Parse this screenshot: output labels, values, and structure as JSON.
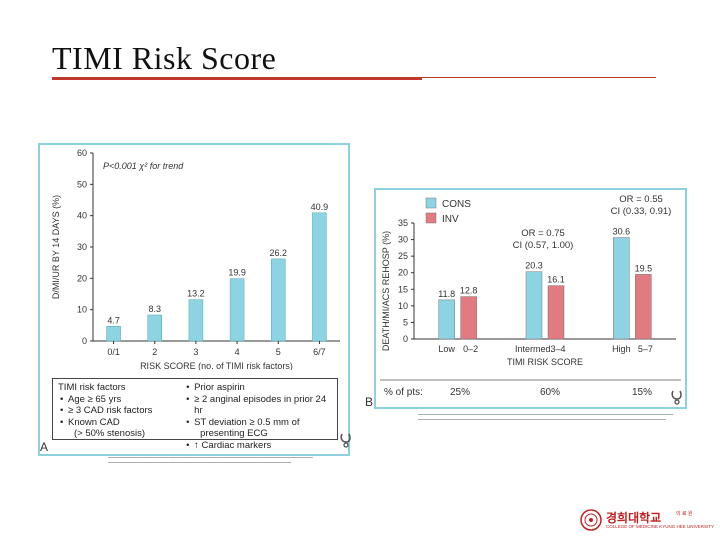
{
  "slide": {
    "title": "TIMI Risk Score"
  },
  "colors": {
    "accent": "#c0392b",
    "panel_border": "#8fd0e0",
    "cons": "#8ed3e1",
    "inv": "#e07b82"
  },
  "chart_data": [
    {
      "type": "bar",
      "panel": "A",
      "annotation": "P<0.001 χ² for trend",
      "ylabel": "D/MI/UR BY 14 DAYS (%)",
      "xlabel": "RISK SCORE (no. of TIMI risk factors)",
      "categories": [
        "0/1",
        "2",
        "3",
        "4",
        "5",
        "6/7"
      ],
      "values": [
        4.7,
        8.3,
        13.2,
        19.9,
        26.2,
        40.9
      ],
      "value_labels": [
        "4.7",
        "8.3",
        "13.2",
        "19.9",
        "26.2",
        "40.9"
      ],
      "ylim": [
        0,
        60
      ],
      "yticks": [
        "0",
        "10",
        "20",
        "30",
        "40",
        "50",
        "60"
      ]
    },
    {
      "type": "bar",
      "panel": "B",
      "ylabel": "DEATH/MI/ACS REHOSP (%)",
      "xlabel": "TIMI RISK SCORE",
      "group_labels": [
        "Low",
        "Intermed.",
        "High"
      ],
      "group_subs": [
        "0–2",
        "3–4",
        "5–7"
      ],
      "series": [
        {
          "name": "CONS",
          "values": [
            11.8,
            20.3,
            30.6
          ],
          "labels": [
            "11.8",
            "20.3",
            "30.6"
          ]
        },
        {
          "name": "INV",
          "values": [
            12.8,
            16.1,
            19.5
          ],
          "labels": [
            "12.8",
            "16.1",
            "19.5"
          ]
        }
      ],
      "ylim": [
        0,
        35
      ],
      "yticks": [
        "0",
        "5",
        "10",
        "15",
        "20",
        "25",
        "30",
        "35"
      ],
      "legend_position": "top-left",
      "odds": [
        {
          "line1": "OR = 0.75",
          "line2": "CI (0.57, 1.00)"
        },
        {
          "line1": "OR = 0.55",
          "line2": "CI (0.33, 0.91)"
        }
      ],
      "pct_label": "% of pts:",
      "pct_values": [
        "25%",
        "60%",
        "15%"
      ]
    }
  ],
  "risk_factors": {
    "heading": "TIMI risk factors",
    "col1": [
      "Age ≥ 65 yrs",
      "≥ 3 CAD risk factors",
      "Known CAD",
      "(> 50% stenosis)"
    ],
    "col2": [
      "Prior aspirin",
      "≥ 2 anginal episodes in prior 24 hr",
      "ST deviation ≥ 0.5 mm of",
      "presenting ECG",
      "↑ Cardiac markers"
    ]
  },
  "panel_letters": {
    "a": "A",
    "b": "B"
  },
  "logo": {
    "name": "경희대학교",
    "side": "의 료 원",
    "sub": "COLLEGE OF MEDICINE KYUNG HEE UNIVERSITY"
  }
}
